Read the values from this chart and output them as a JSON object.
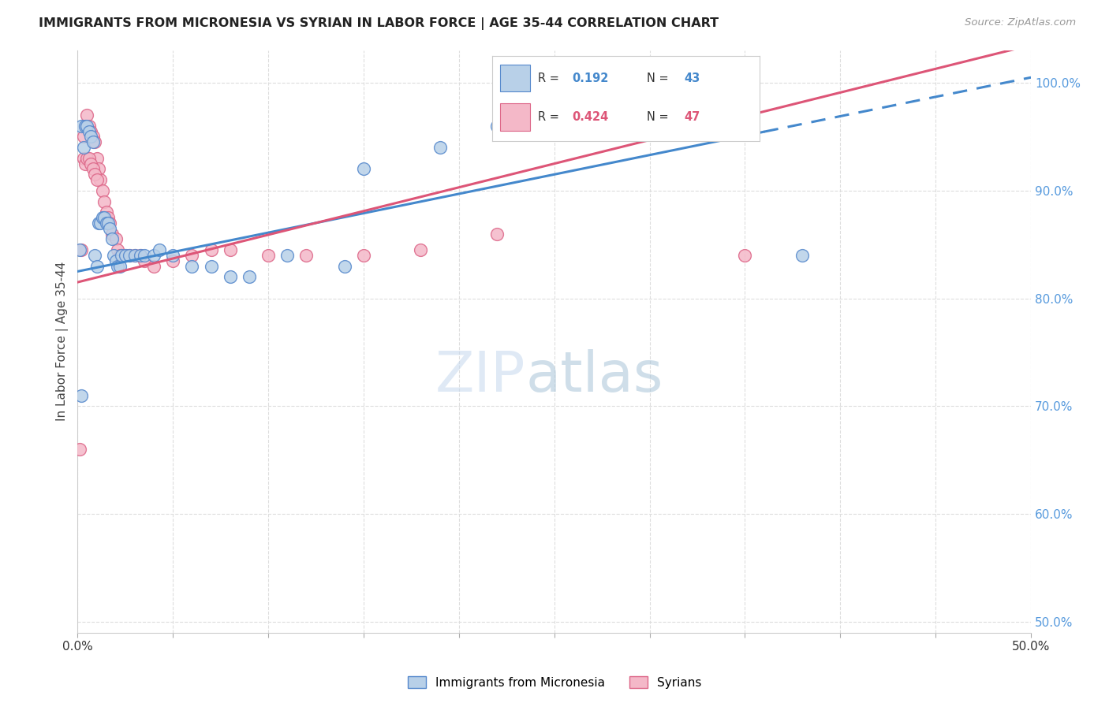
{
  "title": "IMMIGRANTS FROM MICRONESIA VS SYRIAN IN LABOR FORCE | AGE 35-44 CORRELATION CHART",
  "source": "Source: ZipAtlas.com",
  "xlabel": "",
  "ylabel": "In Labor Force | Age 35-44",
  "xlim": [
    0.0,
    0.5
  ],
  "ylim": [
    0.49,
    1.03
  ],
  "xticks": [
    0.0,
    0.05,
    0.1,
    0.15,
    0.2,
    0.25,
    0.3,
    0.35,
    0.4,
    0.45,
    0.5
  ],
  "yticks": [
    0.5,
    0.6,
    0.7,
    0.8,
    0.9,
    1.0
  ],
  "ytick_labels": [
    "50.0%",
    "60.0%",
    "70.0%",
    "80.0%",
    "90.0%",
    "100.0%"
  ],
  "micronesia_color": "#b8d0e8",
  "syrian_color": "#f4b8c8",
  "micronesia_edge": "#5588cc",
  "syrian_edge": "#dd6688",
  "trend_micronesia_color": "#4488cc",
  "trend_syrian_color": "#dd5577",
  "trend_mic_x0": 0.0,
  "trend_mic_y0": 0.825,
  "trend_mic_x1": 0.5,
  "trend_mic_y1": 1.005,
  "trend_syr_x0": 0.0,
  "trend_syr_y0": 0.815,
  "trend_syr_x1": 0.5,
  "trend_syr_y1": 1.035,
  "trend_mic_solid_end": 0.36,
  "R_micronesia": 0.192,
  "N_micronesia": 43,
  "R_syrian": 0.424,
  "N_syrian": 47,
  "legend_label_micronesia": "Immigrants from Micronesia",
  "legend_label_syrian": "Syrians",
  "watermark_zip": "ZIP",
  "watermark_atlas": "atlas",
  "background_color": "#ffffff",
  "micronesia_x": [
    0.001,
    0.002,
    0.003,
    0.004,
    0.005,
    0.006,
    0.007,
    0.008,
    0.009,
    0.01,
    0.011,
    0.012,
    0.013,
    0.014,
    0.015,
    0.016,
    0.017,
    0.018,
    0.019,
    0.02,
    0.021,
    0.022,
    0.023,
    0.025,
    0.027,
    0.03,
    0.033,
    0.035,
    0.04,
    0.043,
    0.05,
    0.06,
    0.07,
    0.08,
    0.09,
    0.11,
    0.14,
    0.15,
    0.19,
    0.22,
    0.35,
    0.38,
    0.002
  ],
  "micronesia_y": [
    0.845,
    0.96,
    0.94,
    0.96,
    0.96,
    0.955,
    0.95,
    0.945,
    0.84,
    0.83,
    0.87,
    0.87,
    0.875,
    0.875,
    0.87,
    0.87,
    0.865,
    0.855,
    0.84,
    0.835,
    0.83,
    0.83,
    0.84,
    0.84,
    0.84,
    0.84,
    0.84,
    0.84,
    0.84,
    0.845,
    0.84,
    0.83,
    0.83,
    0.82,
    0.82,
    0.84,
    0.83,
    0.92,
    0.94,
    0.96,
    1.0,
    0.84,
    0.71
  ],
  "syrian_x": [
    0.001,
    0.002,
    0.003,
    0.004,
    0.005,
    0.006,
    0.007,
    0.008,
    0.009,
    0.01,
    0.011,
    0.012,
    0.013,
    0.014,
    0.015,
    0.016,
    0.017,
    0.018,
    0.02,
    0.021,
    0.022,
    0.023,
    0.025,
    0.027,
    0.03,
    0.033,
    0.035,
    0.04,
    0.05,
    0.06,
    0.07,
    0.08,
    0.1,
    0.12,
    0.15,
    0.18,
    0.22,
    0.28,
    0.35,
    0.003,
    0.004,
    0.005,
    0.006,
    0.007,
    0.008,
    0.009,
    0.01
  ],
  "syrian_y": [
    0.66,
    0.845,
    0.95,
    0.96,
    0.97,
    0.96,
    0.955,
    0.95,
    0.945,
    0.93,
    0.92,
    0.91,
    0.9,
    0.89,
    0.88,
    0.875,
    0.87,
    0.86,
    0.855,
    0.845,
    0.84,
    0.84,
    0.84,
    0.84,
    0.84,
    0.84,
    0.835,
    0.83,
    0.835,
    0.84,
    0.845,
    0.845,
    0.84,
    0.84,
    0.84,
    0.845,
    0.86,
    1.0,
    0.84,
    0.93,
    0.925,
    0.93,
    0.93,
    0.925,
    0.92,
    0.915,
    0.91
  ]
}
